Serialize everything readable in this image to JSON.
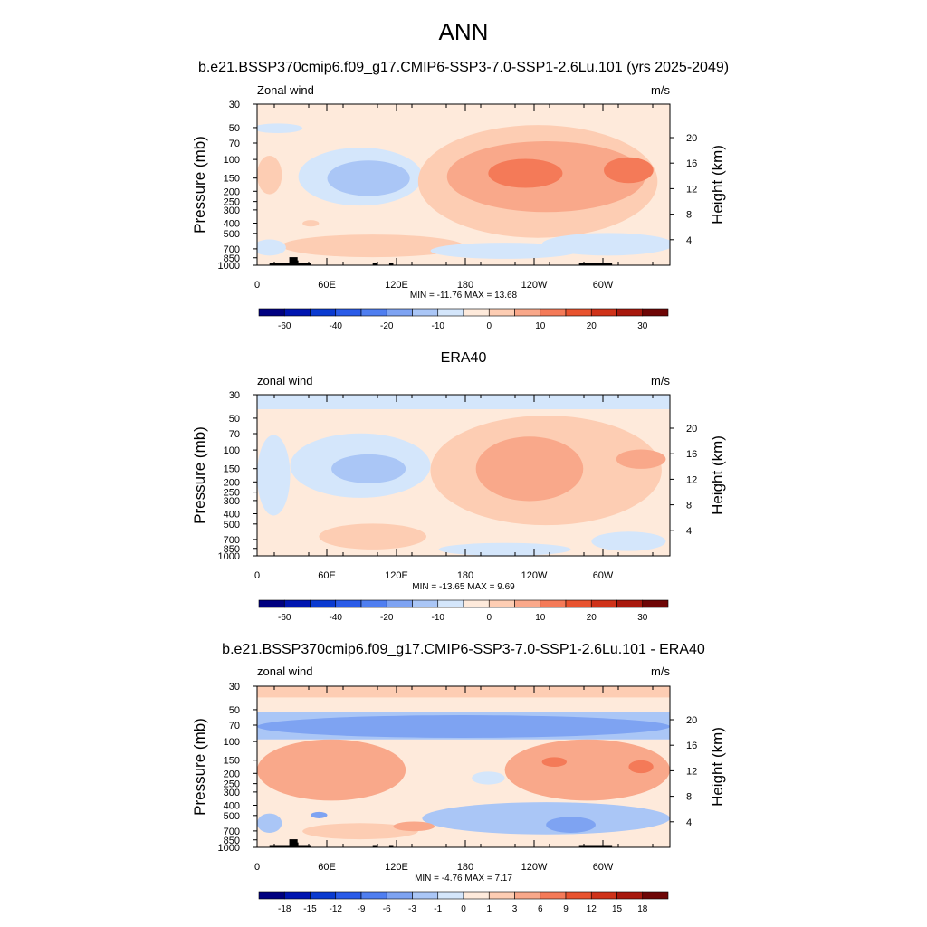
{
  "main_title": "ANN",
  "colors": {
    "abs_scale": [
      "#000080",
      "#0015b0",
      "#0a3ad0",
      "#2a5be8",
      "#4f7ef0",
      "#7ea3f2",
      "#aac6f6",
      "#d4e6fb",
      "#feeadb",
      "#fdcdb3",
      "#f9a88a",
      "#f47a58",
      "#e8532f",
      "#cf3219",
      "#a8180d",
      "#6e0505"
    ],
    "diff_scale": [
      "#000080",
      "#0015b0",
      "#0a3ad0",
      "#2a5be8",
      "#4f7ef0",
      "#7ea3f2",
      "#aac6f6",
      "#d4e6fb",
      "#feeadb",
      "#fdcdb3",
      "#f9a88a",
      "#f47a58",
      "#e8532f",
      "#cf3219",
      "#a8180d",
      "#6e0505"
    ]
  },
  "chart_data": [
    {
      "type": "heatmap",
      "id": "model",
      "title": "b.e21.BSSP370cmip6.f09_g17.CMIP6-SSP3-7.0-SSP1-2.6Lu.101 (yrs 2025-2049)",
      "left_label": "Zonal wind",
      "right_label": "m/s",
      "ylabel": "Pressure (mb)",
      "y2label": "Height (km)",
      "x_ticks": [
        "0",
        "60E",
        "120E",
        "180",
        "120W",
        "60W"
      ],
      "y_ticks": [
        "30",
        "50",
        "70",
        "100",
        "150",
        "200",
        "250",
        "300",
        "400",
        "500",
        "700",
        "850",
        "1000"
      ],
      "y2_ticks": [
        "4",
        "8",
        "12",
        "16",
        "20"
      ],
      "stats": "MIN = -11.76  MAX =  13.68",
      "min": -11.76,
      "max": 13.68,
      "colorbar_labels": [
        "-60",
        "-40",
        "-20",
        "-10",
        "0",
        "10",
        "20",
        "30"
      ]
    },
    {
      "type": "heatmap",
      "id": "obs",
      "title": "ERA40",
      "left_label": "zonal wind",
      "right_label": "m/s",
      "ylabel": "Pressure (mb)",
      "y2label": "Height (km)",
      "x_ticks": [
        "0",
        "60E",
        "120E",
        "180",
        "120W",
        "60W"
      ],
      "y_ticks": [
        "30",
        "50",
        "70",
        "100",
        "150",
        "200",
        "250",
        "300",
        "400",
        "500",
        "700",
        "850",
        "1000"
      ],
      "y2_ticks": [
        "4",
        "8",
        "12",
        "16",
        "20"
      ],
      "stats": "MIN = -13.65  MAX =   9.69",
      "min": -13.65,
      "max": 9.69,
      "colorbar_labels": [
        "-60",
        "-40",
        "-20",
        "-10",
        "0",
        "10",
        "20",
        "30"
      ]
    },
    {
      "type": "heatmap",
      "id": "diff",
      "title": "b.e21.BSSP370cmip6.f09_g17.CMIP6-SSP3-7.0-SSP1-2.6Lu.101 - ERA40",
      "left_label": "zonal wind",
      "right_label": "m/s",
      "ylabel": "Pressure (mb)",
      "y2label": "Height (km)",
      "x_ticks": [
        "0",
        "60E",
        "120E",
        "180",
        "120W",
        "60W"
      ],
      "y_ticks": [
        "30",
        "50",
        "70",
        "100",
        "150",
        "200",
        "250",
        "300",
        "400",
        "500",
        "700",
        "850",
        "1000"
      ],
      "y2_ticks": [
        "4",
        "8",
        "12",
        "16",
        "20"
      ],
      "stats": "MIN =  -4.76  MAX =   7.17",
      "min": -4.76,
      "max": 7.17,
      "colorbar_labels": [
        "-18",
        "-15",
        "-12",
        "-9",
        "-6",
        "-3",
        "-1",
        "0",
        "1",
        "3",
        "6",
        "9",
        "12",
        "15",
        "18"
      ]
    }
  ]
}
